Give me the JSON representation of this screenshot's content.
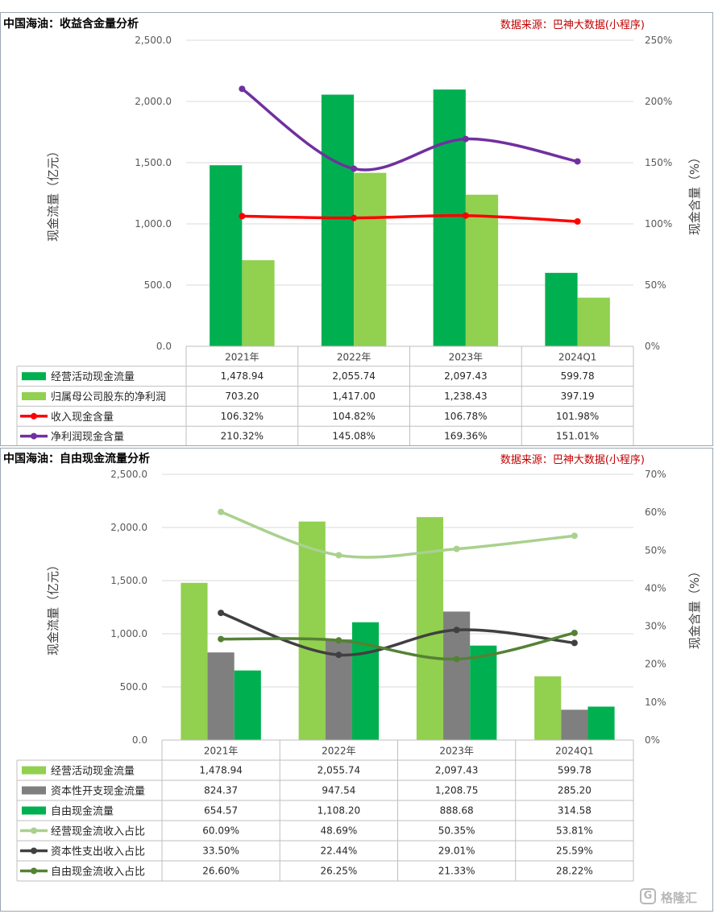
{
  "colors": {
    "green_dark": "#00b050",
    "green_light": "#92d050",
    "red": "#ff0000",
    "purple": "#7030a0",
    "gray": "#7f7f7f",
    "light_green_line": "#a9d18e",
    "dark_gray_line": "#404040",
    "olive_green_line": "#548235",
    "source_red": "#c00000"
  },
  "watermark": {
    "text": "格隆汇",
    "icon": "G"
  },
  "chart_data": [
    {
      "type": "bar",
      "title": "中国海油：收益含金量分析",
      "source": "数据来源：巴神大数据(小程序)",
      "categories": [
        "2021年",
        "2022年",
        "2023年",
        "2024Q1"
      ],
      "ylabel": "现金流量（亿元）",
      "y2label": "现金含量（%）",
      "ylim": [
        0,
        2500
      ],
      "y2lim": [
        0,
        250
      ],
      "yticks": [
        "0.0",
        "500.0",
        "1,000.0",
        "1,500.0",
        "2,000.0",
        "2,500.0"
      ],
      "y2ticks": [
        "0%",
        "50%",
        "100%",
        "150%",
        "200%",
        "250%"
      ],
      "grid": true,
      "legend": "data-table",
      "series": [
        {
          "name": "经营活动现金流量",
          "kind": "bar",
          "axis": "left",
          "color": "#00b050",
          "values": [
            1478.94,
            2055.74,
            2097.43,
            599.78
          ],
          "labels": [
            "1,478.94",
            "2,055.74",
            "2,097.43",
            "599.78"
          ]
        },
        {
          "name": "归属母公司股东的净利润",
          "kind": "bar",
          "axis": "left",
          "color": "#92d050",
          "values": [
            703.2,
            1417.0,
            1238.43,
            397.19
          ],
          "labels": [
            "703.20",
            "1,417.00",
            "1,238.43",
            "397.19"
          ]
        },
        {
          "name": "收入现金含量",
          "kind": "line",
          "axis": "right",
          "color": "#ff0000",
          "values": [
            106.32,
            104.82,
            106.78,
            101.98
          ],
          "labels": [
            "106.32%",
            "104.82%",
            "106.78%",
            "101.98%"
          ]
        },
        {
          "name": "净利润现金含量",
          "kind": "line",
          "axis": "right",
          "color": "#7030a0",
          "values": [
            210.32,
            145.08,
            169.36,
            151.01
          ],
          "labels": [
            "210.32%",
            "145.08%",
            "169.36%",
            "151.01%"
          ]
        }
      ]
    },
    {
      "type": "bar",
      "title": "中国海油：自由现金流量分析",
      "source": "数据来源：巴神大数据(小程序)",
      "categories": [
        "2021年",
        "2022年",
        "2023年",
        "2024Q1"
      ],
      "ylabel": "现金流量（亿元）",
      "y2label": "现金含量（%）",
      "ylim": [
        0,
        2500
      ],
      "y2lim": [
        0,
        70
      ],
      "yticks": [
        "0.0",
        "500.0",
        "1,000.0",
        "1,500.0",
        "2,000.0",
        "2,500.0"
      ],
      "y2ticks": [
        "0%",
        "10%",
        "20%",
        "30%",
        "40%",
        "50%",
        "60%",
        "70%"
      ],
      "grid": true,
      "legend": "data-table",
      "series": [
        {
          "name": "经营活动现金流量",
          "kind": "bar",
          "axis": "left",
          "color": "#92d050",
          "values": [
            1478.94,
            2055.74,
            2097.43,
            599.78
          ],
          "labels": [
            "1,478.94",
            "2,055.74",
            "2,097.43",
            "599.78"
          ]
        },
        {
          "name": "资本性开支现金流量",
          "kind": "bar",
          "axis": "left",
          "color": "#7f7f7f",
          "values": [
            824.37,
            947.54,
            1208.75,
            285.2
          ],
          "labels": [
            "824.37",
            "947.54",
            "1,208.75",
            "285.20"
          ]
        },
        {
          "name": "自由现金流量",
          "kind": "bar",
          "axis": "left",
          "color": "#00b050",
          "values": [
            654.57,
            1108.2,
            888.68,
            314.58
          ],
          "labels": [
            "654.57",
            "1,108.20",
            "888.68",
            "314.58"
          ]
        },
        {
          "name": "经营现金流收入占比",
          "kind": "line",
          "axis": "right",
          "color": "#a9d18e",
          "values": [
            60.09,
            48.69,
            50.35,
            53.81
          ],
          "labels": [
            "60.09%",
            "48.69%",
            "50.35%",
            "53.81%"
          ]
        },
        {
          "name": "资本性支出收入占比",
          "kind": "line",
          "axis": "right",
          "color": "#404040",
          "values": [
            33.5,
            22.44,
            29.01,
            25.59
          ],
          "labels": [
            "33.50%",
            "22.44%",
            "29.01%",
            "25.59%"
          ]
        },
        {
          "name": "自由现金流收入占比",
          "kind": "line",
          "axis": "right",
          "color": "#548235",
          "values": [
            26.6,
            26.25,
            21.33,
            28.22
          ],
          "labels": [
            "26.60%",
            "26.25%",
            "21.33%",
            "28.22%"
          ]
        }
      ]
    }
  ]
}
